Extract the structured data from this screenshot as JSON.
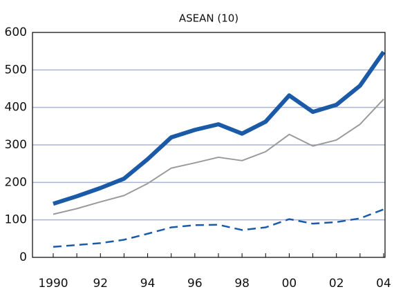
{
  "chart_data": {
    "type": "line",
    "title": "ASEAN (10)",
    "categories": [
      "1990",
      null,
      "92",
      null,
      "94",
      null,
      "96",
      null,
      "98",
      null,
      "00",
      null,
      "02",
      null,
      "04"
    ],
    "series": [
      {
        "color": "#1a5aa6",
        "dash": false,
        "width": 6,
        "values": [
          143,
          163,
          185,
          210,
          262,
          320,
          340,
          355,
          330,
          362,
          432,
          388,
          407,
          458,
          548
        ]
      },
      {
        "color": "#9a9a9a",
        "dash": false,
        "width": 2,
        "values": [
          115,
          130,
          148,
          165,
          197,
          238,
          252,
          267,
          258,
          282,
          328,
          297,
          313,
          355,
          422
        ]
      },
      {
        "color": "#1a5aa6",
        "dash": true,
        "width": 2.5,
        "values": [
          28,
          33,
          38,
          47,
          63,
          80,
          86,
          87,
          73,
          80,
          102,
          90,
          94,
          104,
          128
        ]
      }
    ],
    "ylim": [
      0,
      600
    ],
    "yticks": [
      0,
      100,
      200,
      300,
      400,
      500,
      600
    ],
    "grid": true
  }
}
